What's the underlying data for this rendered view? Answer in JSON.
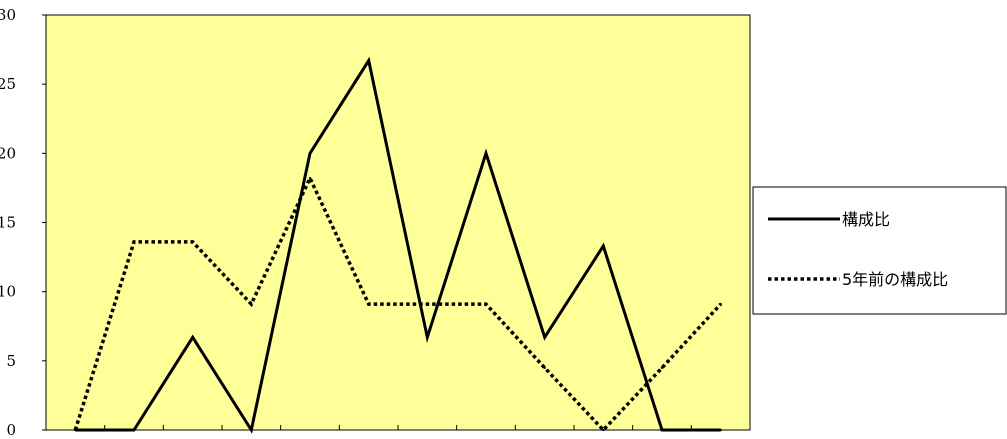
{
  "chart_data": {
    "type": "line",
    "x": [
      1,
      2,
      3,
      4,
      5,
      6,
      7,
      8,
      9,
      10,
      11,
      12
    ],
    "ylim": [
      0,
      30
    ],
    "yticks": [
      0,
      5,
      10,
      15,
      20,
      25,
      30
    ],
    "yticklabels": [
      "0",
      "5",
      "10",
      "15",
      "20",
      "25",
      "30"
    ],
    "grid": false,
    "legend_position": "right",
    "plot_background": "#FFFF99",
    "series": [
      {
        "name": "構成比",
        "style": "solid",
        "color": "#000000",
        "values": [
          0,
          0,
          6.7,
          0,
          20,
          26.7,
          6.7,
          20,
          6.7,
          13.3,
          0,
          0
        ]
      },
      {
        "name": "5年前の構成比",
        "style": "dotted",
        "color": "#000000",
        "values": [
          0,
          13.6,
          13.6,
          9.1,
          18.2,
          9.1,
          9.1,
          9.1,
          4.5,
          0,
          4.5,
          9.1
        ]
      }
    ]
  }
}
